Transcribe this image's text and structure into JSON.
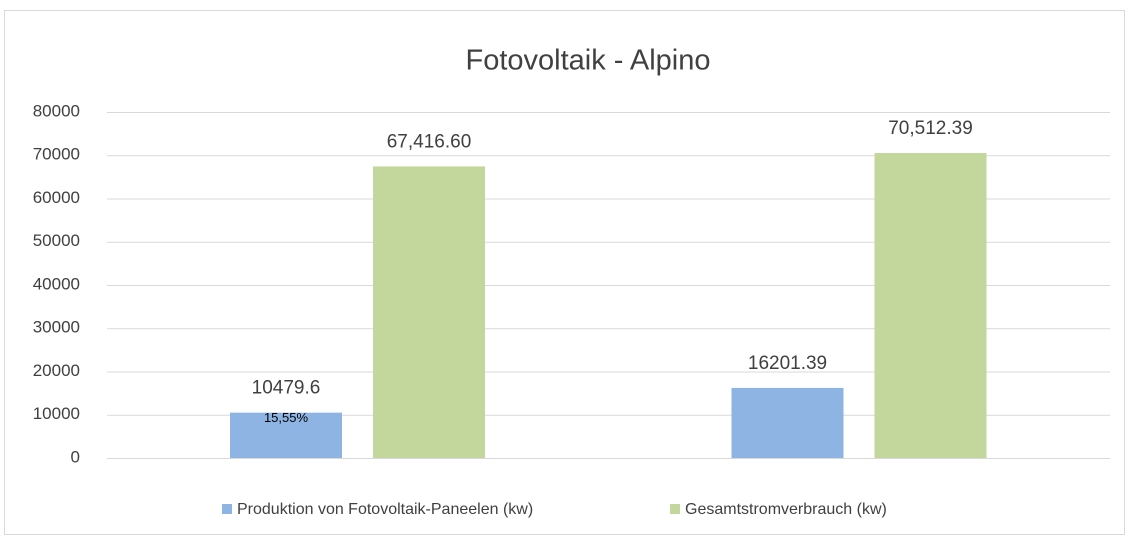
{
  "chart_data": {
    "type": "bar",
    "title": "Fotovoltaik - Alpino",
    "categories": [
      null,
      null
    ],
    "series": [
      {
        "name": "Produktion von Fotovoltaik-Paneelen (kw)",
        "color": "#8eb4e3",
        "values": [
          10479.6,
          16201.39
        ]
      },
      {
        "name": "Gesamtstromverbrauch (kw)",
        "color": "#c3d69b",
        "values": [
          67416.6,
          70512.39
        ],
        "value_labels": [
          "67,416.60",
          "70,512.39"
        ]
      }
    ],
    "annotation": "15,55%",
    "ylim": [
      0,
      80000
    ],
    "yticks": [
      0,
      10000,
      20000,
      30000,
      40000,
      50000,
      60000,
      70000,
      80000
    ],
    "grid": true,
    "legend": "bottom"
  }
}
